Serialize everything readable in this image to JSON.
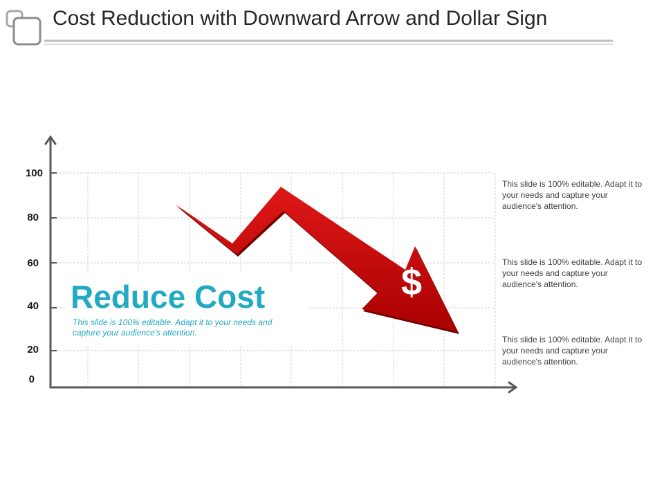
{
  "header": {
    "title": "Cost Reduction with Downward Arrow and Dollar Sign"
  },
  "graph": {
    "y_ticks": [
      "100",
      "80",
      "60",
      "40",
      "20",
      "0"
    ],
    "arrow_color": "#c00000",
    "symbol": "$"
  },
  "highlight": {
    "title": "Reduce Cost",
    "description": "This slide is 100% editable. Adapt it to your needs and capture your audience's attention.",
    "color": "#22a9c3"
  },
  "notes": [
    {
      "text": "This slide is 100% editable. Adapt it to your needs and capture your audience's attention."
    },
    {
      "text": "This slide is 100% editable. Adapt it to your needs and capture your audience's attention."
    },
    {
      "text": "This slide is 100% editable. Adapt it to your needs and capture your audience's attention."
    }
  ]
}
